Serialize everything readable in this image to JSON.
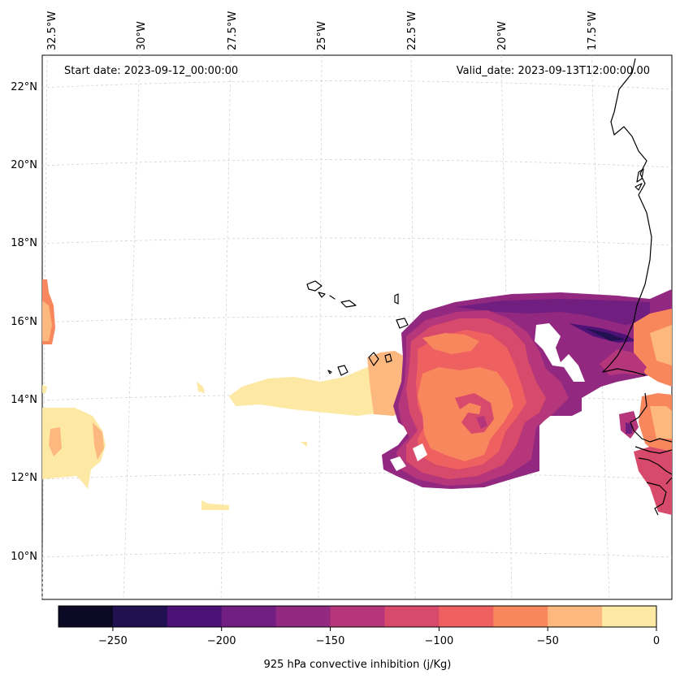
{
  "header": {
    "start_date": "Start date: 2023-09-12_00:00:00",
    "valid_date": "Valid_date: 2023-09-13T12:00:00.00"
  },
  "map": {
    "lon_labels": [
      "32.5°W",
      "30°W",
      "27.5°W",
      "25°W",
      "22.5°W",
      "20°W",
      "17.5°W"
    ],
    "lat_labels": [
      "22°N",
      "20°N",
      "18°N",
      "16°N",
      "14°N",
      "12°N",
      "10°N"
    ],
    "field": "925 hPa convective inhibition"
  },
  "colorbar": {
    "label": "925 hPa convective inhibition (j/Kg)",
    "tick_labels": [
      "−250",
      "−200",
      "−150",
      "−100",
      "−50",
      "0"
    ],
    "levels": [
      -275,
      -250,
      -225,
      -200,
      -175,
      -150,
      -125,
      -100,
      -75,
      -50,
      -25,
      0
    ],
    "colors": [
      "#0b0924",
      "#221150",
      "#4c1276",
      "#701f81",
      "#92287f",
      "#b5367a",
      "#d84a6b",
      "#ef6060",
      "#f9875e",
      "#fdb87f",
      "#fde8a4"
    ]
  }
}
